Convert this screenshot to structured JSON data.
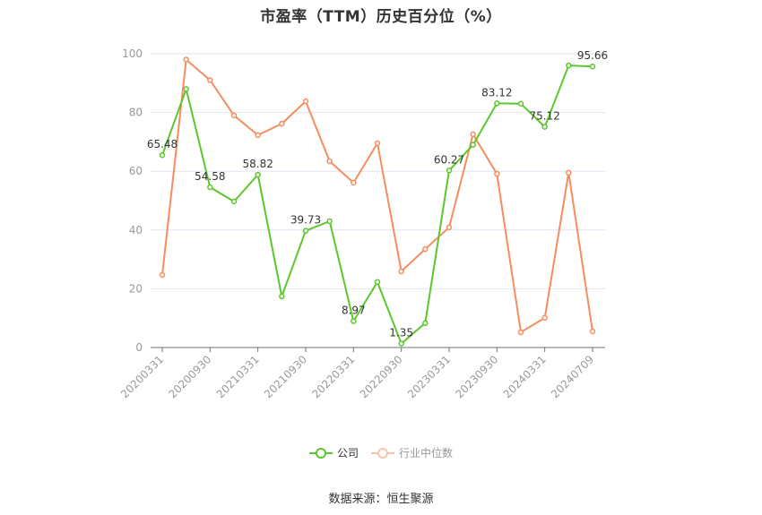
{
  "chart_data": {
    "type": "line",
    "title": "市盈率（TTM）历史百分位（%）",
    "xlabel": "",
    "ylabel": "",
    "ylim": [
      0,
      100
    ],
    "yticks": [
      0,
      20,
      40,
      60,
      80,
      100
    ],
    "grid": true,
    "legend_position": "bottom",
    "x": [
      "20200331",
      "20200630",
      "20200930",
      "20201231",
      "20210331",
      "20210630",
      "20210930",
      "20211231",
      "20220331",
      "20220630",
      "20220930",
      "20221231",
      "20230331",
      "20230630",
      "20230930",
      "20231231",
      "20240331",
      "20240630",
      "20240709"
    ],
    "xtick_labels": [
      "20200331",
      "20200930",
      "20210331",
      "20210930",
      "20220331",
      "20220930",
      "20230331",
      "20230930",
      "20240331",
      "20240709"
    ],
    "series": [
      {
        "name": "公司",
        "color": "#5cc72d",
        "values": [
          65.48,
          88.0,
          54.58,
          49.7,
          58.82,
          17.4,
          39.73,
          43.0,
          8.97,
          22.3,
          1.35,
          8.3,
          60.27,
          69.0,
          83.12,
          83.0,
          75.12,
          96.0,
          95.66
        ],
        "labeled_points": {
          "0": "65.48",
          "2": "54.58",
          "4": "58.82",
          "6": "39.73",
          "8": "8.97",
          "10": "1.35",
          "12": "60.27",
          "14": "83.12",
          "16": "75.12",
          "18": "95.66"
        }
      },
      {
        "name": "行业中位数",
        "color": "#f58d5e",
        "values": [
          24.7,
          98.0,
          91.0,
          79.0,
          72.3,
          76.2,
          83.8,
          63.4,
          56.1,
          69.5,
          25.9,
          33.5,
          40.9,
          72.6,
          59.1,
          5.2,
          10.1,
          59.5,
          5.5
        ]
      }
    ]
  },
  "legend": {
    "company": "公司",
    "industry": "行业中位数"
  },
  "source": "数据来源：恒生聚源"
}
